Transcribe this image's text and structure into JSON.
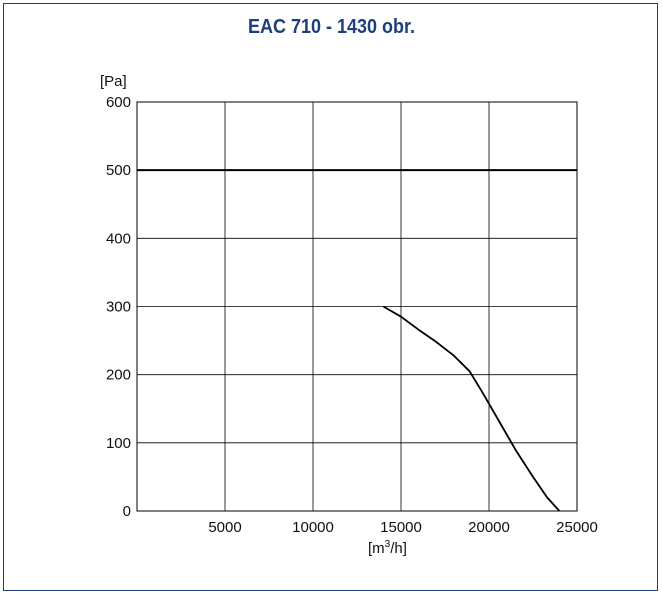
{
  "chart_data": {
    "type": "line",
    "title": "EAC 710 - 1430 obr.",
    "ylabel": "[Pa]",
    "xlabel_prefix": "[m",
    "xlabel_sup": "3",
    "xlabel_suffix": "/h]",
    "xlim": [
      0,
      25000
    ],
    "ylim": [
      0,
      600
    ],
    "x_ticks": [
      5000,
      10000,
      15000,
      20000,
      25000
    ],
    "y_ticks": [
      0,
      100,
      200,
      300,
      400,
      500,
      600
    ],
    "grid": true,
    "reference_line": {
      "y": 500
    },
    "series": [
      {
        "x": [
          14000,
          15000,
          16000,
          17000,
          18000,
          18900,
          19600,
          20500,
          21500,
          22500,
          23300,
          24000
        ],
        "y": [
          300,
          285,
          266,
          248,
          228,
          205,
          175,
          135,
          90,
          50,
          20,
          0
        ]
      }
    ],
    "colors": {
      "title": "#1e3f7a",
      "frame": "#1f3f73",
      "grid": "#000000",
      "curve": "#000000"
    }
  }
}
